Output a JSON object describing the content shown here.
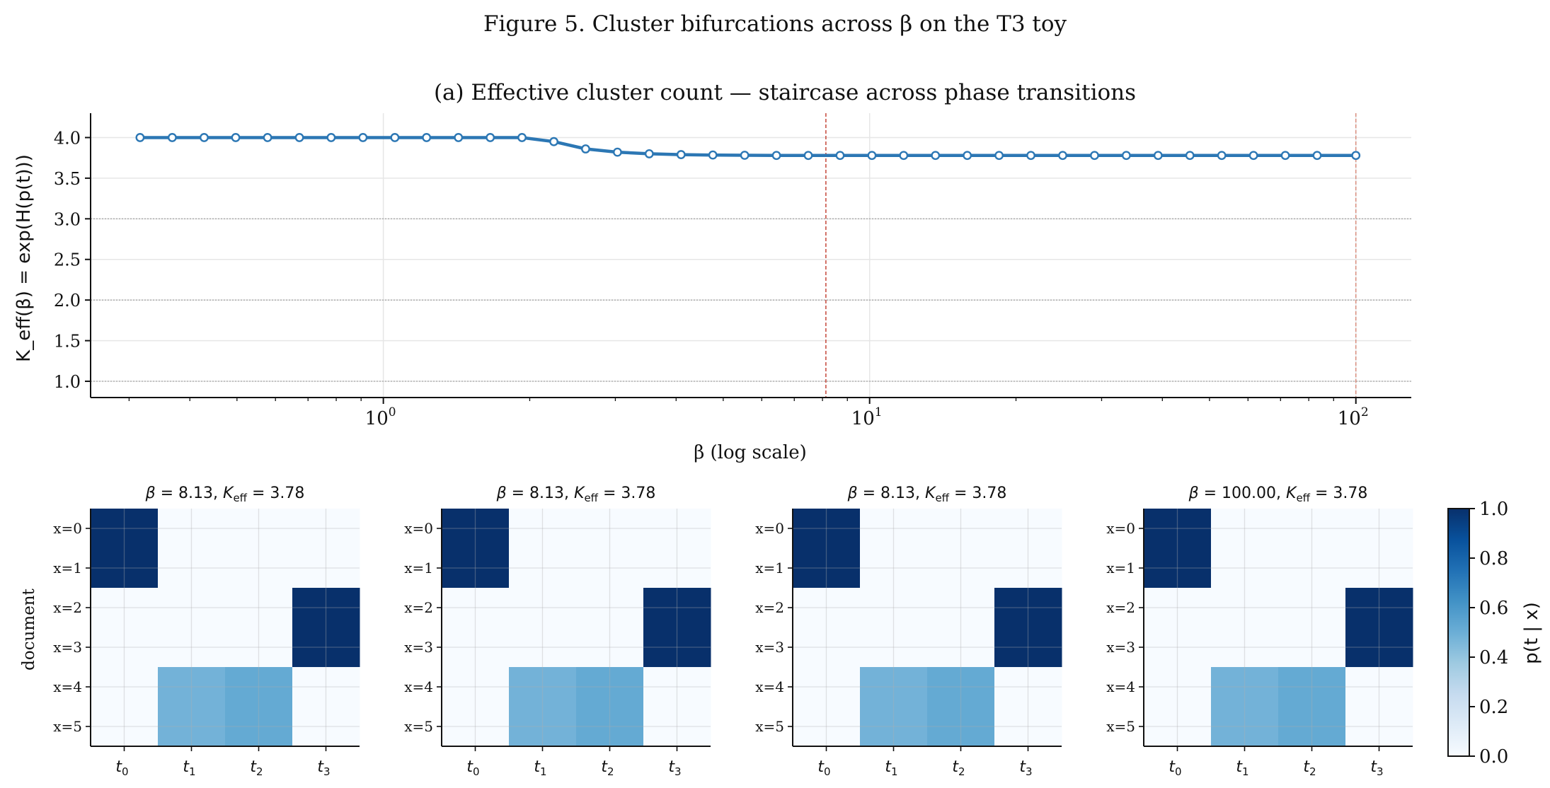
{
  "figure_title": "Figure 5. Cluster bifurcations across β on the T3 toy",
  "chart_data": [
    {
      "type": "line",
      "title": "(a) Effective cluster count — staircase across phase transitions",
      "xlabel": "β  (log scale)",
      "ylabel": "K_eff(β) = exp(H(p(t)))",
      "xscale": "log",
      "xlim": [
        0.25,
        130
      ],
      "ylim": [
        0.8,
        4.3
      ],
      "yticks": [
        "1.0",
        "1.5",
        "2.0",
        "2.5",
        "3.0",
        "3.5",
        "4.0"
      ],
      "xticks": [
        {
          "base": "10",
          "exp": "0",
          "value": 1
        },
        {
          "base": "10",
          "exp": "1",
          "value": 10
        },
        {
          "base": "10",
          "exp": "2",
          "value": 100
        }
      ],
      "reference_hlines": [
        1,
        2,
        3
      ],
      "transition_vlines": [
        8.13,
        100
      ],
      "grid": true,
      "series": [
        {
          "color": "#2c77b4",
          "x": [
            0.316,
            0.368,
            0.428,
            0.497,
            0.578,
            0.672,
            0.781,
            0.908,
            1.056,
            1.227,
            1.427,
            1.659,
            1.928,
            2.242,
            2.606,
            3.03,
            3.522,
            4.095,
            4.76,
            5.534,
            6.433,
            7.479,
            8.695,
            10.11,
            11.75,
            13.66,
            15.88,
            18.46,
            21.46,
            24.95,
            29.01,
            33.72,
            39.2,
            45.57,
            52.98,
            61.59,
            71.6,
            83.24,
            100.0
          ],
          "y": [
            4.0,
            4.0,
            4.0,
            4.0,
            4.0,
            4.0,
            4.0,
            4.0,
            4.0,
            4.0,
            4.0,
            4.0,
            4.0,
            3.95,
            3.86,
            3.82,
            3.8,
            3.79,
            3.785,
            3.782,
            3.78,
            3.78,
            3.78,
            3.78,
            3.78,
            3.78,
            3.78,
            3.78,
            3.78,
            3.78,
            3.78,
            3.78,
            3.78,
            3.78,
            3.78,
            3.78,
            3.78,
            3.78,
            3.78
          ]
        }
      ]
    },
    {
      "type": "heatmap",
      "panels": [
        {
          "beta": "8.13",
          "keff": "3.78"
        },
        {
          "beta": "8.13",
          "keff": "3.78"
        },
        {
          "beta": "8.13",
          "keff": "3.78"
        },
        {
          "beta": "100.00",
          "keff": "3.78"
        }
      ],
      "row_labels": [
        "x=0",
        "x=1",
        "x=2",
        "x=3",
        "x=4",
        "x=5"
      ],
      "col_labels": [
        "0",
        "1",
        "2",
        "3"
      ],
      "ylabel": "document",
      "colorbar_label": "p(t | x)",
      "colorbar_ticks": [
        "0.0",
        "0.2",
        "0.4",
        "0.6",
        "0.8",
        "1.0"
      ],
      "vmin": 0,
      "vmax": 1,
      "values": [
        [
          1,
          0,
          0,
          0
        ],
        [
          1,
          0,
          0,
          0
        ],
        [
          0,
          0,
          0,
          1
        ],
        [
          0,
          0,
          0,
          1
        ],
        [
          0,
          0.48,
          0.52,
          0
        ],
        [
          0,
          0.48,
          0.52,
          0
        ]
      ]
    }
  ]
}
